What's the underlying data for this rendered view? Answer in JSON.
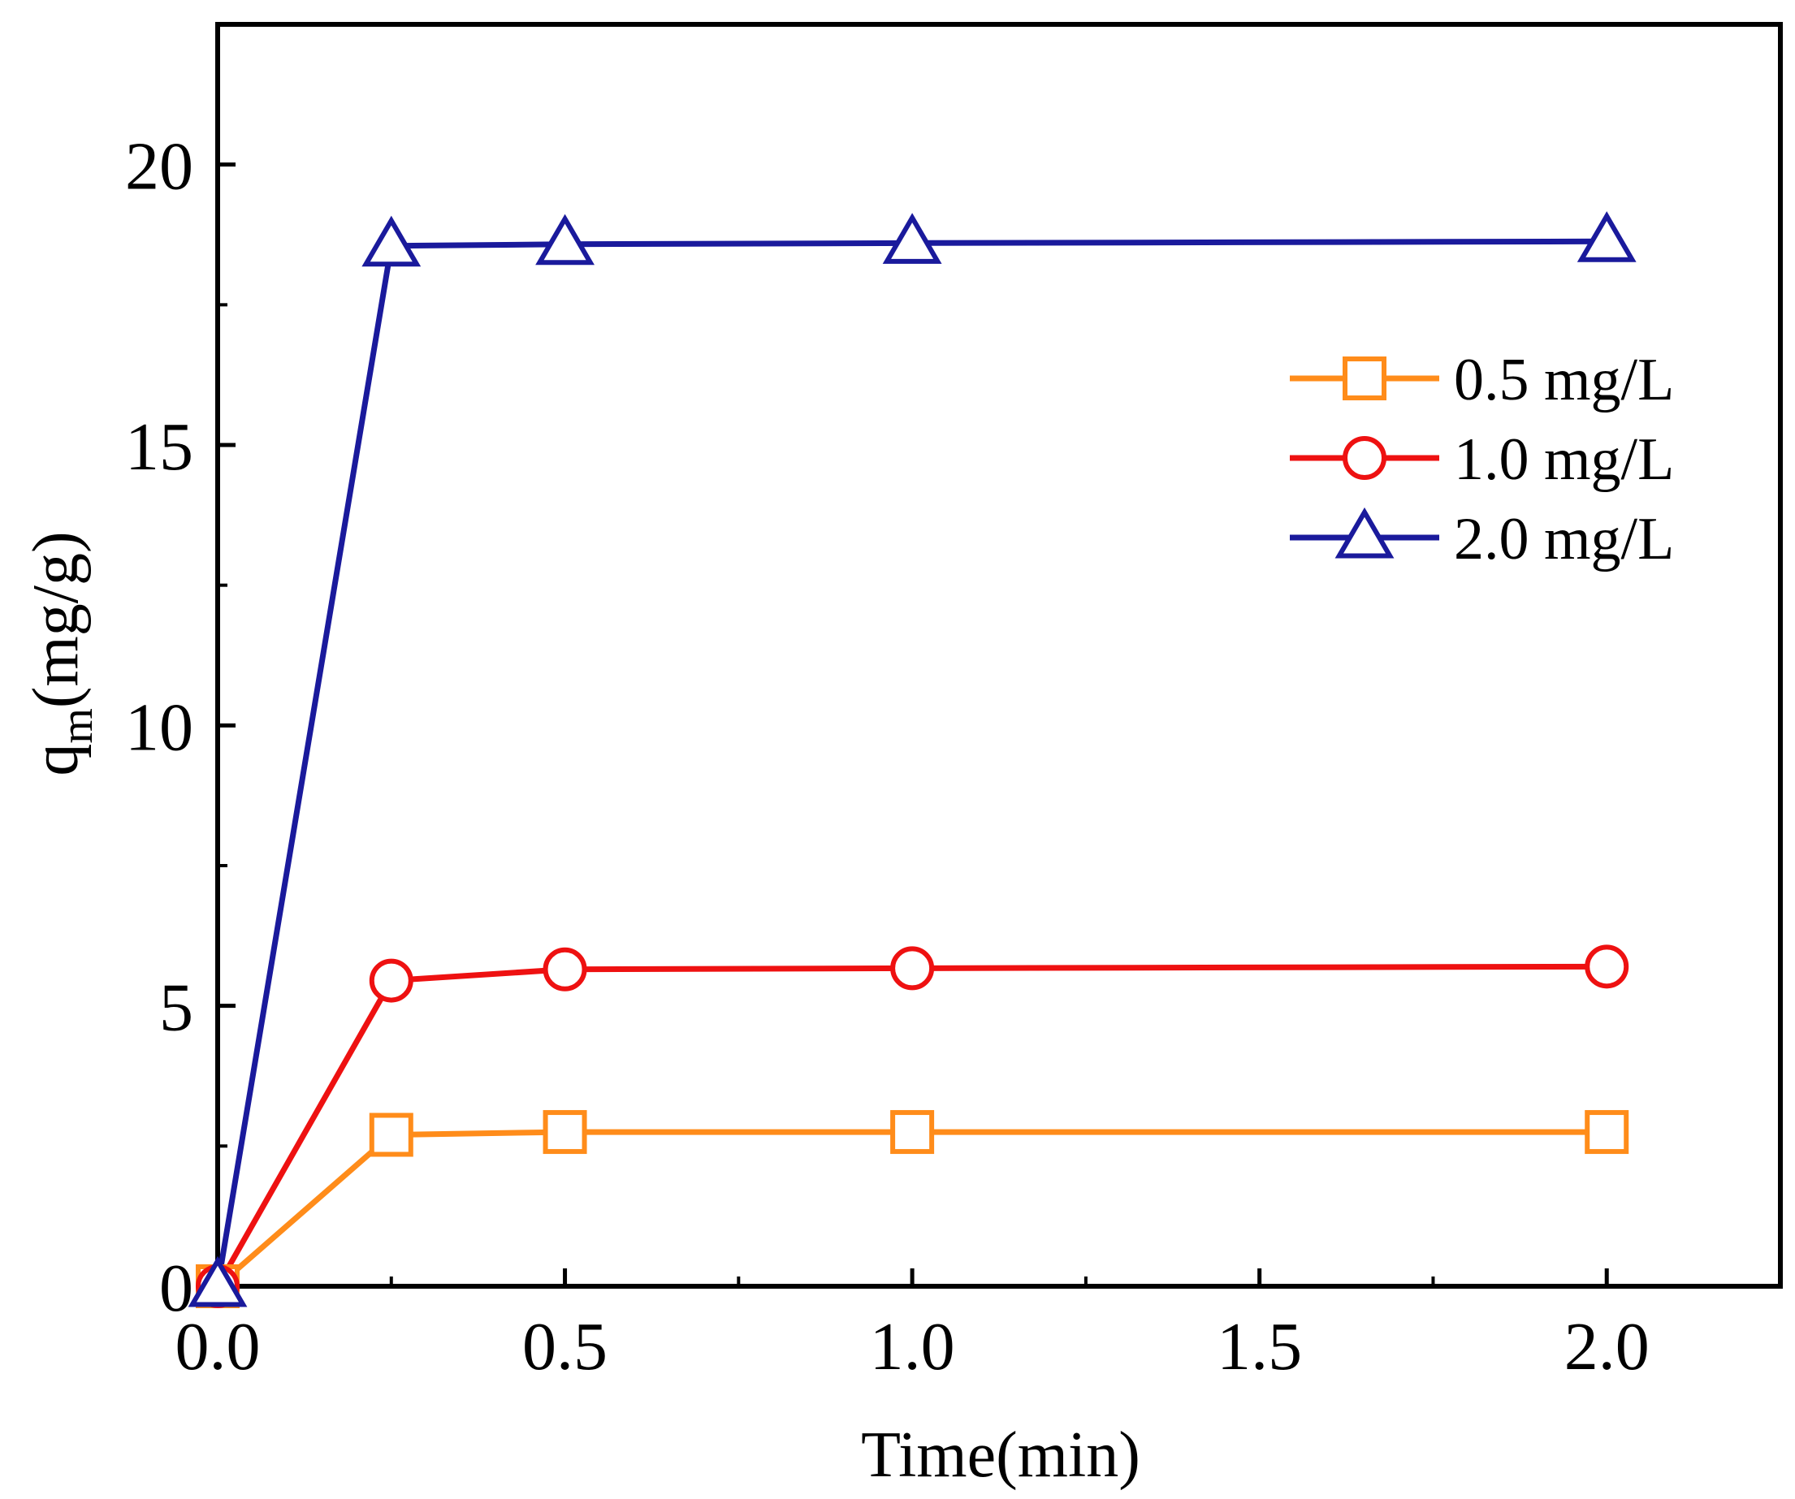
{
  "chart_data": {
    "type": "line",
    "title": "",
    "xlabel": "Time(min)",
    "ylabel_main": "q",
    "ylabel_subscript": "m",
    "ylabel_units": "(mg/g)",
    "xlim": [
      0,
      2.25
    ],
    "ylim": [
      0,
      22.5
    ],
    "xticks": [
      0,
      0.5,
      1.0,
      1.5,
      2.0
    ],
    "xtick_labels": [
      "0.0",
      "0.5",
      "1.0",
      "1.5",
      "2.0"
    ],
    "yticks": [
      0,
      5,
      10,
      15,
      20
    ],
    "ytick_labels": [
      "0",
      "5",
      "10",
      "15",
      "20"
    ],
    "grid": false,
    "legend_position": "upper-right",
    "series": [
      {
        "name": "0.5 mg/L",
        "color": "#ff8c1a",
        "marker": "square",
        "x": [
          0,
          0.25,
          0.5,
          1.0,
          2.0
        ],
        "values": [
          0,
          2.7,
          2.75,
          2.75,
          2.75
        ]
      },
      {
        "name": "1.0 mg/L",
        "color": "#ee1111",
        "marker": "circle",
        "x": [
          0,
          0.25,
          0.5,
          1.0,
          2.0
        ],
        "values": [
          0,
          5.45,
          5.65,
          5.67,
          5.7
        ]
      },
      {
        "name": "2.0 mg/L",
        "color": "#1a1a9c",
        "marker": "triangle",
        "x": [
          0,
          0.25,
          0.5,
          1.0,
          2.0
        ],
        "values": [
          0,
          18.55,
          18.58,
          18.6,
          18.63
        ]
      }
    ]
  }
}
